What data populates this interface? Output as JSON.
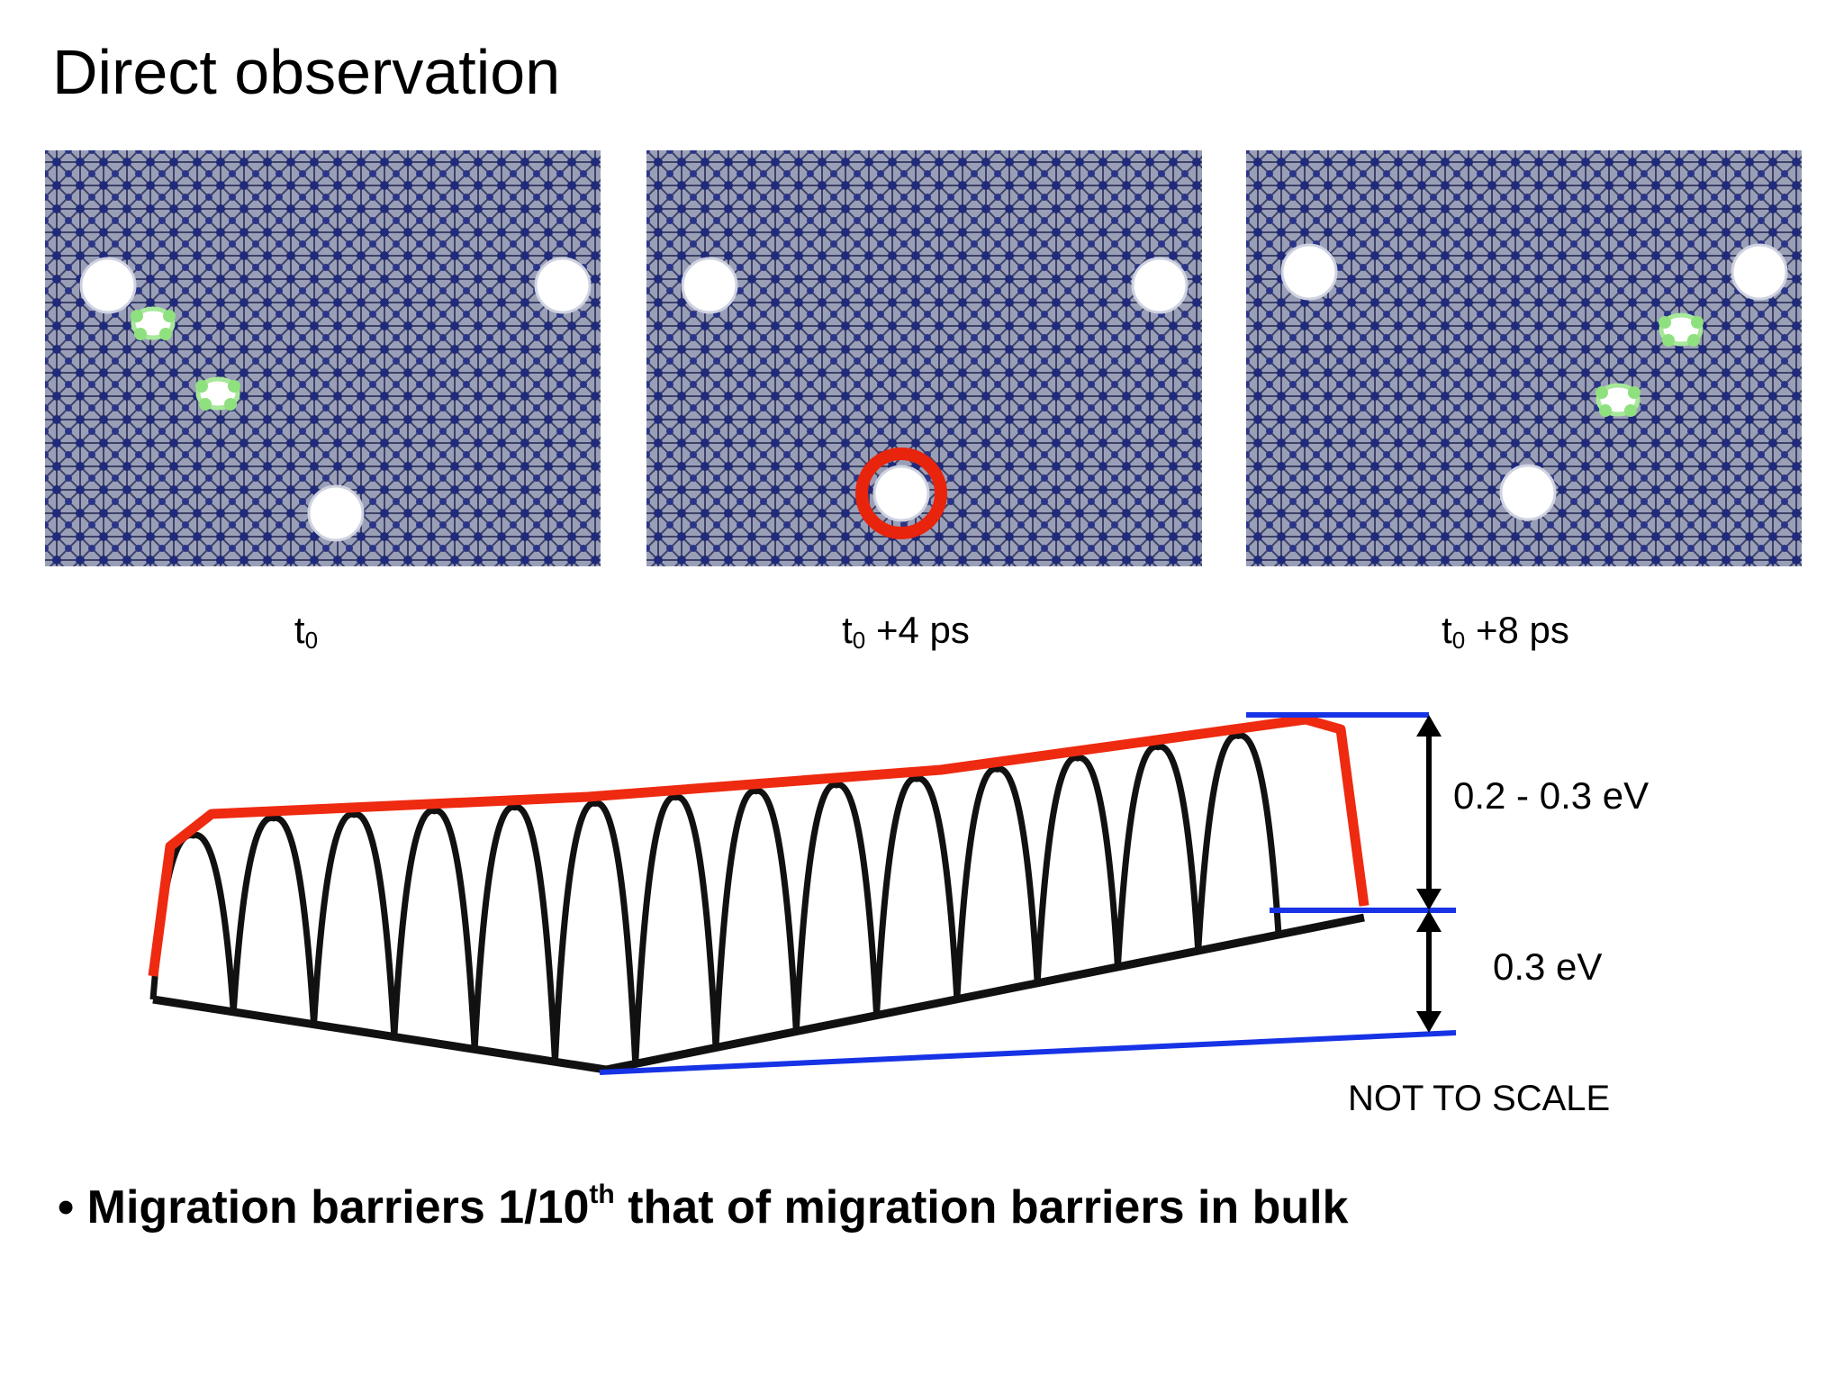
{
  "title": "Direct observation",
  "panels": [
    {
      "caption": {
        "base": "t",
        "sub": "0"
      }
    },
    {
      "caption": {
        "base": "t",
        "sub": "0",
        "suffix": " +4 ps"
      }
    },
    {
      "caption": {
        "base": "t",
        "sub": "0",
        "suffix": " +8 ps"
      }
    }
  ],
  "diagram": {
    "barrier_label": "0.2 - 0.3 eV",
    "offset_label": "0.3 eV",
    "note": "NOT TO SCALE"
  },
  "bullet": {
    "text": "Migration barriers 1/10",
    "sup": "th",
    "rest": " that of migration barriers in bulk"
  }
}
